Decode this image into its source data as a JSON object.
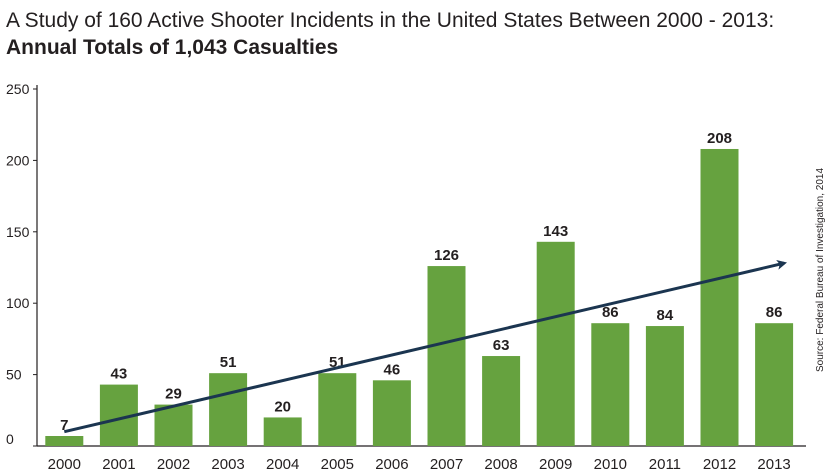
{
  "colors": {
    "bar": "#66a23f",
    "trend": "#1b3550",
    "axis": "#231f20",
    "text": "#231f20"
  },
  "chart_data": {
    "type": "bar",
    "title": "A Study of 160 Active Shooter Incidents in the United States Between 2000 - 2013:",
    "subtitle": "Annual Totals of 1,043 Casualties",
    "xlabel": "",
    "ylabel": "",
    "ylim": [
      0,
      250
    ],
    "yticks": [
      0,
      50,
      100,
      150,
      200,
      250
    ],
    "grid": false,
    "categories": [
      "2000",
      "2001",
      "2002",
      "2003",
      "2004",
      "2005",
      "2006",
      "2007",
      "2008",
      "2009",
      "2010",
      "2011",
      "2012",
      "2013"
    ],
    "values": [
      7,
      43,
      29,
      51,
      20,
      51,
      46,
      126,
      63,
      143,
      86,
      84,
      208,
      86
    ],
    "data_labels": [
      "7",
      "43",
      "29",
      "51",
      "20",
      "51",
      "46",
      "126",
      "63",
      "143",
      "86",
      "84",
      "208",
      "86"
    ],
    "trend_line": {
      "start": {
        "x": "2000",
        "y": 10
      },
      "end": {
        "x": "2013",
        "y": 128
      }
    },
    "source": "Source: Federal Bureau of Investigation, 2014"
  }
}
